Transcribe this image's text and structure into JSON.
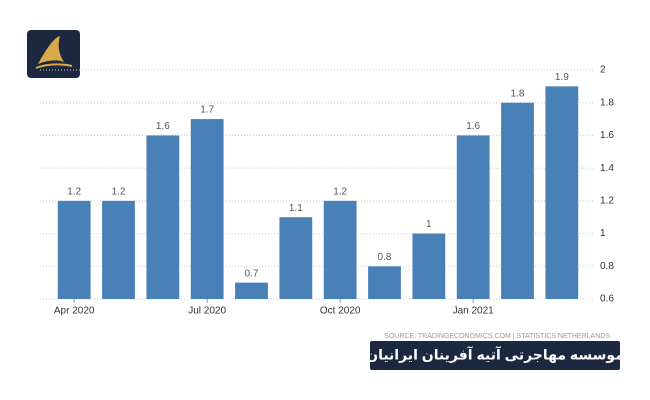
{
  "chart_data": {
    "type": "bar",
    "categories": [
      "Apr 2020",
      null,
      null,
      "Jul 2020",
      null,
      null,
      "Oct 2020",
      null,
      null,
      "Jan 2021",
      null,
      null
    ],
    "values": [
      1.2,
      1.2,
      1.6,
      1.7,
      0.7,
      1.1,
      1.2,
      0.8,
      1,
      1.6,
      1.8,
      1.9
    ],
    "color": "#4a80b8",
    "ylim": [
      0.6,
      2
    ],
    "yticks": [
      0.6,
      0.8,
      1,
      1.2,
      1.4,
      1.6,
      1.8,
      2
    ],
    "grid": true,
    "source": "SOURCE: TRADINGECONOMICS.COM  |  STATISTICS NETHERLANDS"
  },
  "banner": "موسسه مهاجرتی آتیه آفرینان ایرانیان"
}
